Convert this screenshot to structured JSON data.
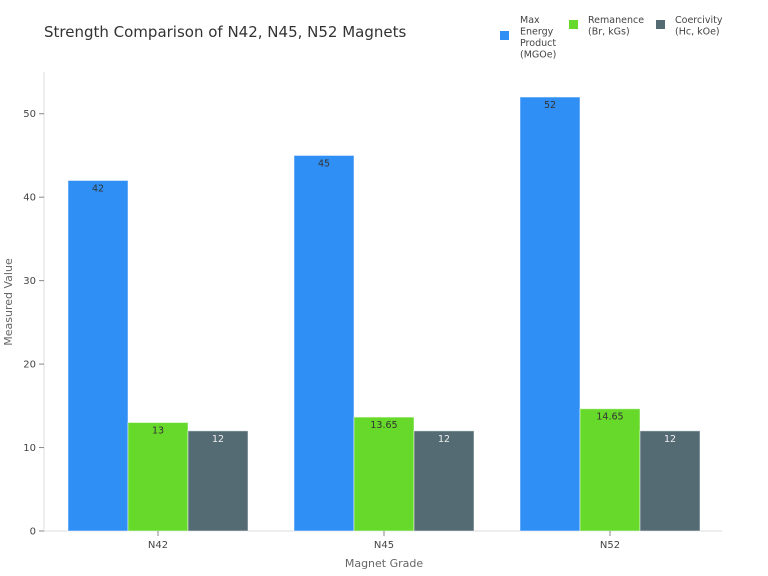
{
  "chart_data": {
    "type": "bar",
    "title": "Strength Comparison of N42, N45, N52 Magnets",
    "xlabel": "Magnet Grade",
    "ylabel": "Measured Value",
    "categories": [
      "N42",
      "N45",
      "N52"
    ],
    "ylim": [
      0,
      55
    ],
    "yticks": [
      0,
      10,
      20,
      30,
      40,
      50
    ],
    "grid": false,
    "legend_position": "top-right",
    "series": [
      {
        "name": "Max Energy Product (MGOe)",
        "legend_lines": [
          "Max",
          "Energy",
          "Product",
          "(MGOe)"
        ],
        "color": "#2f8ff5",
        "values": [
          42,
          45,
          52
        ],
        "labels": [
          "42",
          "45",
          "52"
        ]
      },
      {
        "name": "Remanence (Br, kGs)",
        "legend_lines": [
          "Remanence",
          "(Br, kGs)"
        ],
        "color": "#66d92a",
        "values": [
          13,
          13.65,
          14.65
        ],
        "labels": [
          "13",
          "13.65",
          "14.65"
        ]
      },
      {
        "name": "Coercivity (Hc, kOe)",
        "legend_lines": [
          "Coercivity",
          "(Hc, kOe)"
        ],
        "color": "#546b74",
        "values": [
          12,
          12,
          12
        ],
        "labels": [
          "12",
          "12",
          "12"
        ]
      }
    ]
  }
}
